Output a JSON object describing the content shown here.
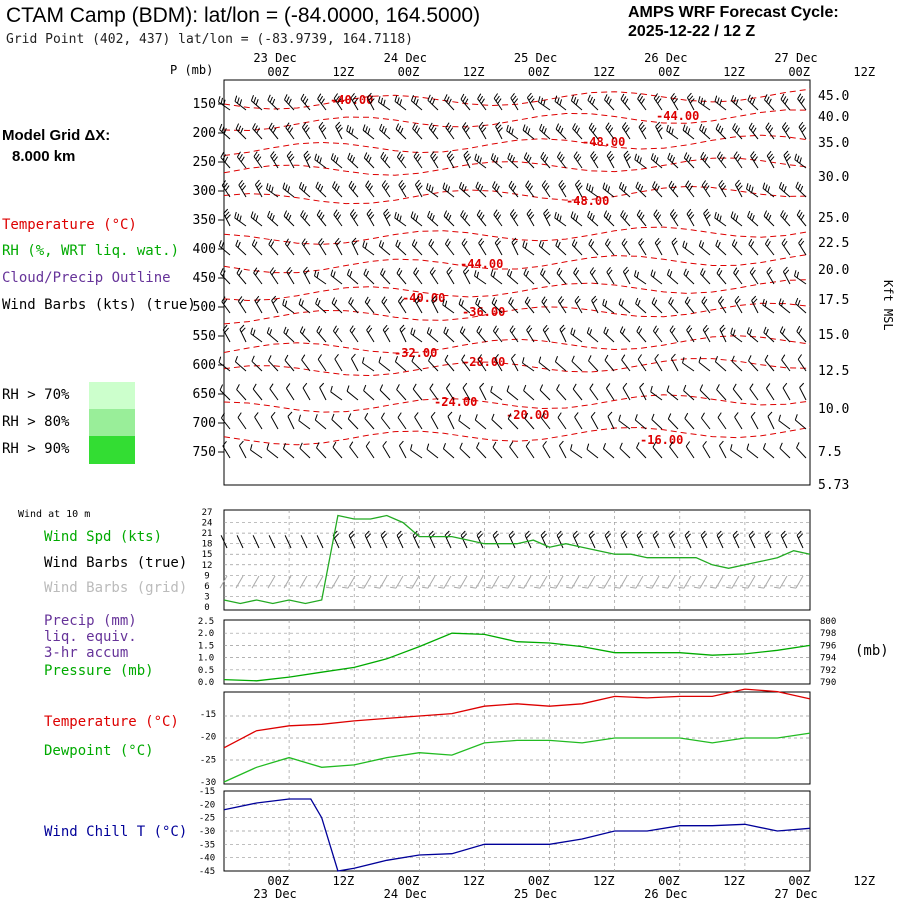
{
  "header": {
    "title": "CTAM Camp (BDM):  lat/lon = (-84.0000, 164.5000)",
    "subtitle": "Grid Point (402, 437) lat/lon = (-83.9739, 164.7118)",
    "cycle_label": "AMPS WRF Forecast Cycle:",
    "cycle_value": "2025-12-22 / 12  Z"
  },
  "model_grid": {
    "label": "Model Grid ΔX:",
    "value": "8.000 km"
  },
  "legend": {
    "temperature": "Temperature (°C)",
    "rh": "RH (%, WRT liq. wat.)",
    "cloud": "Cloud/Precip Outline",
    "barbs": "Wind Barbs (kts) (true)",
    "rh_levels": [
      {
        "label": "RH > 70%",
        "color": "#ccffcc"
      },
      {
        "label": "RH > 80%",
        "color": "#99ee99"
      },
      {
        "label": "RH > 90%",
        "color": "#33dd33"
      }
    ]
  },
  "colors": {
    "temperature": "#dd0000",
    "rh": "#00aa00",
    "cloud": "#663399",
    "wind_chill": "#000099",
    "pressure": "#00aa00",
    "grid_barbs": "#aaaaaa"
  },
  "time_axis": {
    "ticks": [
      "00Z",
      "12Z",
      "00Z",
      "12Z",
      "00Z",
      "12Z",
      "00Z",
      "12Z",
      "00Z",
      "12Z"
    ],
    "days": [
      "23 Dec",
      "24 Dec",
      "25 Dec",
      "26 Dec",
      "27 Dec"
    ]
  },
  "panels": {
    "wind": {
      "corner": "Wind at 10 m",
      "labels": [
        "Wind Spd (kts)",
        "Wind Barbs (true)",
        "Wind Barbs (grid)"
      ],
      "y_ticks": [
        "27",
        "24",
        "21",
        "18",
        "15",
        "12",
        "9",
        "6",
        "3",
        "0"
      ]
    },
    "precip": {
      "labels": [
        "Precip (mm)",
        "liq. equiv.",
        "3-hr accum",
        "Pressure (mb)"
      ],
      "left_ticks": [
        "2.5",
        "2.0",
        "1.5",
        "1.0",
        "0.5",
        "0.0"
      ],
      "right_ticks": [
        "800",
        "798",
        "796",
        "794",
        "792",
        "790"
      ],
      "right_unit": "(mb)"
    },
    "temp": {
      "labels": [
        "Temperature (°C)",
        "Dewpoint (°C)"
      ],
      "y_ticks": [
        "-15",
        "-20",
        "-25",
        "-30"
      ]
    },
    "chill": {
      "labels": [
        "Wind Chill T (°C)"
      ],
      "y_ticks": [
        "-15",
        "-20",
        "-25",
        "-30",
        "-35",
        "-40",
        "-45"
      ]
    }
  },
  "chart_data": [
    {
      "type": "time-height",
      "y_label": "P (mb)",
      "pressure_levels": [
        "150",
        "200",
        "250",
        "300",
        "350",
        "400",
        "450",
        "500",
        "550",
        "600",
        "650",
        "700",
        "750"
      ],
      "right_axis_label": "Kft MSL",
      "right_axis_ticks": [
        "45.0",
        "40.0",
        "35.0",
        "30.0",
        "25.0",
        "22.5",
        "20.0",
        "17.5",
        "15.0",
        "12.5",
        "10.0",
        "7.5",
        "5.73"
      ],
      "temperature_contours": [
        "-40.00",
        "-44.00",
        "-48.00",
        "-48.00",
        "-44.00",
        "-40.00",
        "-36.00",
        "-32.00",
        "-28.00",
        "-24.00",
        "-20.00",
        "-16.00"
      ]
    },
    {
      "type": "line",
      "title": "Wind Spd (kts)",
      "x": [
        0,
        3,
        6,
        9,
        12,
        15,
        18,
        21,
        24,
        27,
        30,
        33,
        36,
        39,
        42,
        45,
        48,
        51,
        54,
        57,
        60,
        63,
        66,
        69,
        72,
        75,
        78,
        81,
        84,
        87,
        90,
        93,
        96,
        99,
        102,
        105,
        108
      ],
      "series": [
        {
          "name": "Wind Spd (kts)",
          "values": [
            2,
            1,
            2,
            1,
            2,
            1,
            2,
            26,
            25,
            25,
            26,
            24,
            20,
            20,
            20,
            19,
            18,
            18,
            18,
            19,
            17,
            18,
            17,
            16,
            15,
            15,
            14,
            14,
            14,
            14,
            12,
            11,
            12,
            13,
            14,
            16,
            15
          ]
        }
      ],
      "ylim": [
        0,
        27
      ]
    },
    {
      "type": "line",
      "title": "Pressure (mb)",
      "x": [
        0,
        6,
        12,
        18,
        24,
        30,
        36,
        42,
        48,
        54,
        60,
        66,
        72,
        78,
        84,
        90,
        96,
        102,
        108
      ],
      "series": [
        {
          "name": "Pressure (mb)",
          "values": [
            790.4,
            790.2,
            790.8,
            791.6,
            792.4,
            793.8,
            795.8,
            798.0,
            797.8,
            796.6,
            796.4,
            795.8,
            794.8,
            794.8,
            794.8,
            794.4,
            794.6,
            795.2,
            796.0
          ]
        }
      ],
      "ylim": [
        790,
        800
      ]
    },
    {
      "type": "line",
      "x": [
        0,
        6,
        12,
        18,
        24,
        30,
        36,
        42,
        48,
        54,
        60,
        66,
        72,
        78,
        84,
        90,
        96,
        102,
        108
      ],
      "series": [
        {
          "name": "Temperature (°C)",
          "values": [
            -23,
            -19.5,
            -18.5,
            -18.2,
            -17.5,
            -17,
            -16.5,
            -16,
            -14.5,
            -14,
            -14.5,
            -14,
            -12.5,
            -12.8,
            -12.5,
            -12.5,
            -11,
            -11.5,
            -13
          ]
        },
        {
          "name": "Dewpoint (°C)",
          "values": [
            -30,
            -27,
            -25,
            -27,
            -26.5,
            -25,
            -24,
            -24.5,
            -22,
            -21.5,
            -21.5,
            -22,
            -21,
            -21,
            -21,
            -22,
            -21,
            -21,
            -20
          ]
        }
      ],
      "ylim": [
        -30,
        -12
      ]
    },
    {
      "type": "line",
      "title": "Wind Chill T (°C)",
      "x": [
        0,
        6,
        12,
        16,
        18,
        21,
        24,
        30,
        36,
        42,
        48,
        54,
        60,
        66,
        72,
        78,
        84,
        90,
        96,
        102,
        108
      ],
      "series": [
        {
          "name": "Wind Chill T (°C)",
          "values": [
            -22,
            -19.5,
            -18,
            -18,
            -25,
            -45,
            -44,
            -41,
            -39,
            -38.5,
            -35,
            -35,
            -35,
            -33,
            -30,
            -30,
            -28,
            -28,
            -27.5,
            -30,
            -29
          ]
        }
      ],
      "ylim": [
        -45,
        -15
      ]
    }
  ]
}
